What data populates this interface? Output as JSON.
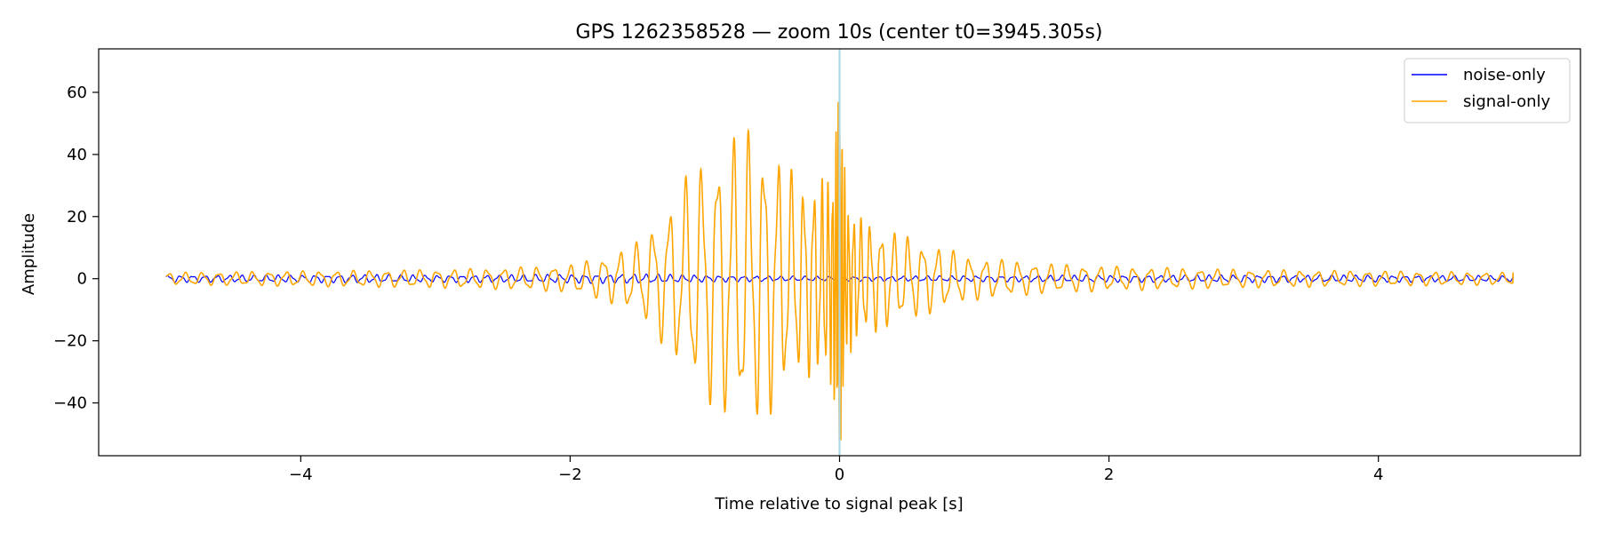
{
  "chart_data": {
    "type": "line",
    "title": "GPS 1262358528 — zoom 10s (center t0=3945.305s)",
    "xlabel": "Time relative to signal peak [s]",
    "ylabel": "Amplitude",
    "xlim": [
      -5.5,
      5.5
    ],
    "ylim": [
      -57,
      74
    ],
    "xticks": [
      -4,
      -2,
      0,
      2,
      4
    ],
    "xtick_labels": [
      "−4",
      "−2",
      "0",
      "2",
      "4"
    ],
    "yticks": [
      -40,
      -20,
      0,
      20,
      40,
      60
    ],
    "ytick_labels": [
      "−40",
      "−20",
      "0",
      "20",
      "40",
      "60"
    ],
    "grid": false,
    "legend_position": "top-right",
    "vline": {
      "x": 0,
      "color": "#add8e6"
    },
    "series": [
      {
        "name": "noise-only",
        "color": "#0000ff",
        "x": [
          -5.0,
          -4.5,
          -4.0,
          -3.5,
          -3.0,
          -2.5,
          -2.0,
          -1.5,
          -1.0,
          -0.5,
          0.0,
          0.5,
          1.0,
          1.5,
          2.0,
          2.5,
          3.0,
          3.5,
          4.0,
          4.5,
          5.0
        ],
        "y_envelope": [
          1.2,
          1.2,
          1.3,
          1.4,
          1.2,
          1.3,
          1.5,
          1.6,
          1.2,
          0.9,
          0.8,
          0.9,
          1.0,
          1.1,
          1.2,
          1.2,
          1.3,
          1.2,
          1.2,
          1.1,
          1.0
        ],
        "y_end": 1.0
      },
      {
        "name": "signal-only",
        "color": "#ffa500",
        "x": [
          -5.0,
          -4.0,
          -3.0,
          -2.5,
          -2.0,
          -1.7,
          -1.5,
          -1.3,
          -1.1,
          -0.9,
          -0.7,
          -0.5,
          -0.3,
          -0.15,
          -0.05,
          0.0,
          0.05,
          0.15,
          0.3,
          0.5,
          0.7,
          1.0,
          1.5,
          2.0,
          3.0,
          4.0,
          5.0
        ],
        "y_envelope": [
          2.0,
          2.5,
          3.0,
          3.5,
          4.5,
          8.0,
          12.0,
          22.0,
          36.0,
          44.0,
          50.0,
          44.0,
          32.0,
          32.0,
          36.0,
          68.0,
          26.0,
          20.0,
          17.0,
          14.0,
          11.0,
          7.0,
          5.0,
          4.0,
          3.0,
          2.5,
          2.0
        ],
        "y_max": 68,
        "y_min": -52,
        "y_end": 2.0
      }
    ]
  }
}
